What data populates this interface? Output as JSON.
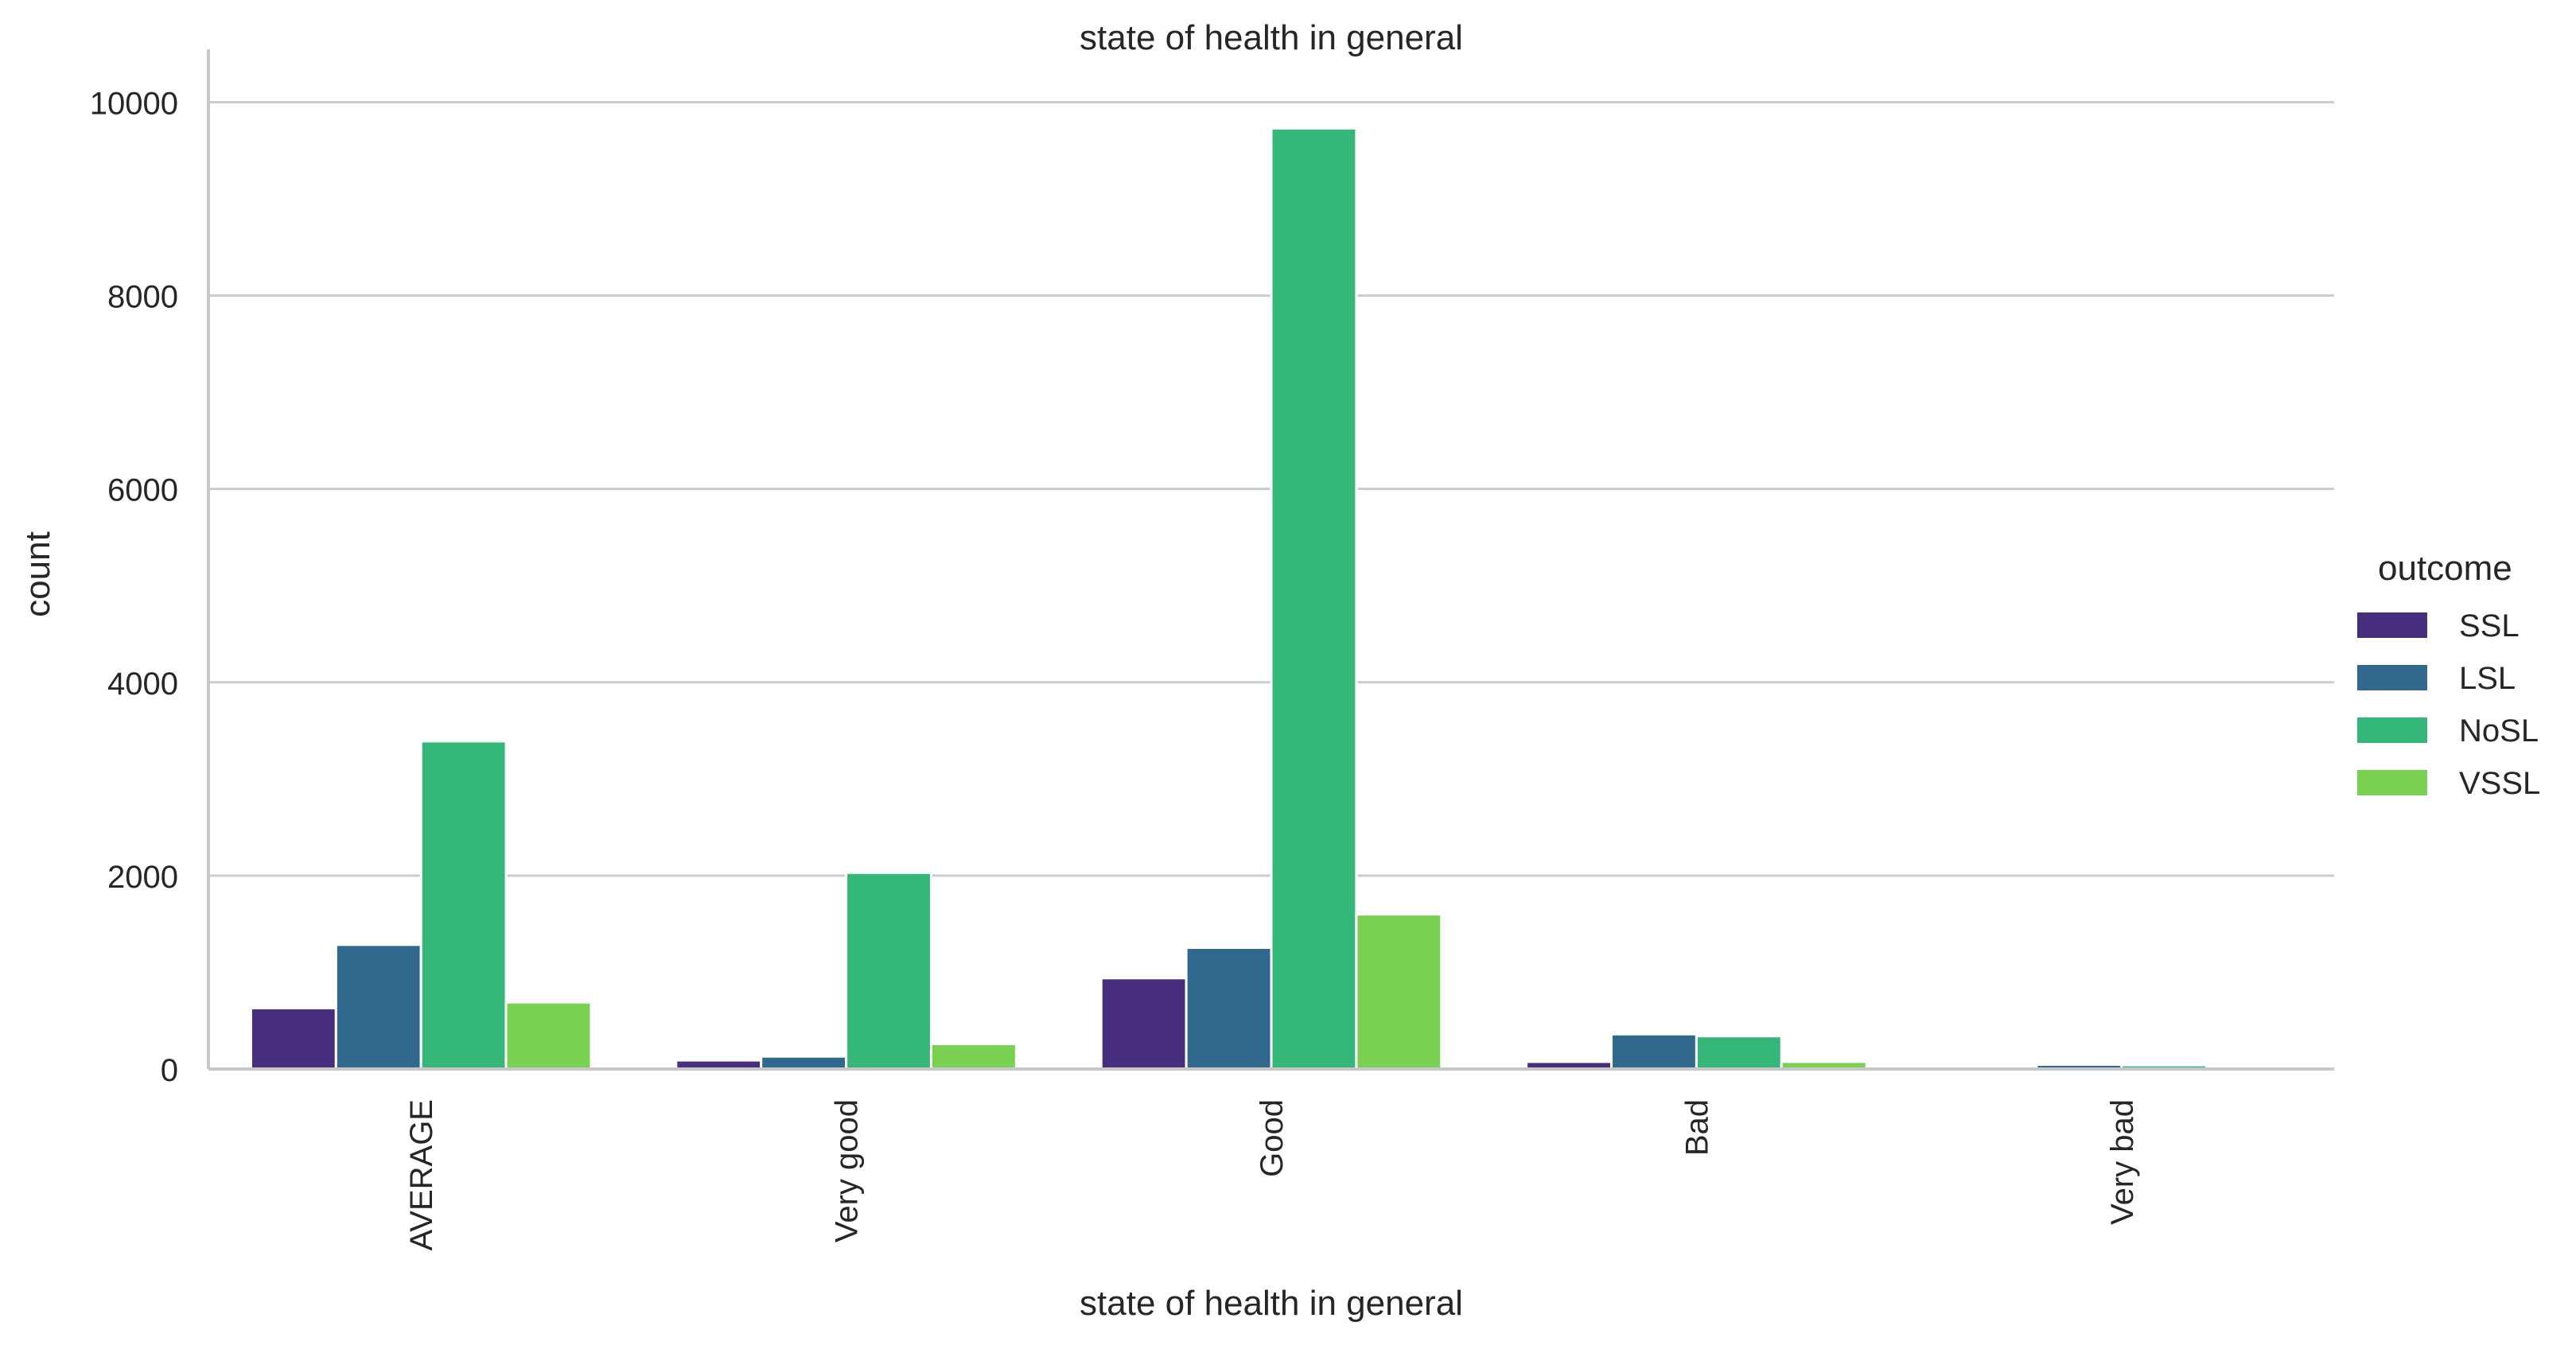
{
  "chart_data": {
    "type": "bar",
    "title": "state of health in general",
    "xlabel": "state of health in general",
    "ylabel": "count",
    "categories": [
      "AVERAGE",
      "Very good",
      "Good",
      "Bad",
      "Very bad"
    ],
    "series": [
      {
        "name": "SSL",
        "color": "#472f7d",
        "values": [
          630,
          90,
          940,
          75,
          8
        ]
      },
      {
        "name": "LSL",
        "color": "#31688e",
        "values": [
          1285,
          130,
          1255,
          360,
          45
        ]
      },
      {
        "name": "NoSL",
        "color": "#35b779",
        "values": [
          3390,
          2030,
          9730,
          340,
          40
        ]
      },
      {
        "name": "VSSL",
        "color": "#7ad151",
        "values": [
          690,
          260,
          1600,
          75,
          10
        ]
      }
    ],
    "ylim": [
      0,
      10300
    ],
    "yticks": [
      0,
      2000,
      4000,
      6000,
      8000,
      10000
    ],
    "grid": "horizontal",
    "legend": {
      "title": "outcome",
      "placement": "right"
    }
  }
}
